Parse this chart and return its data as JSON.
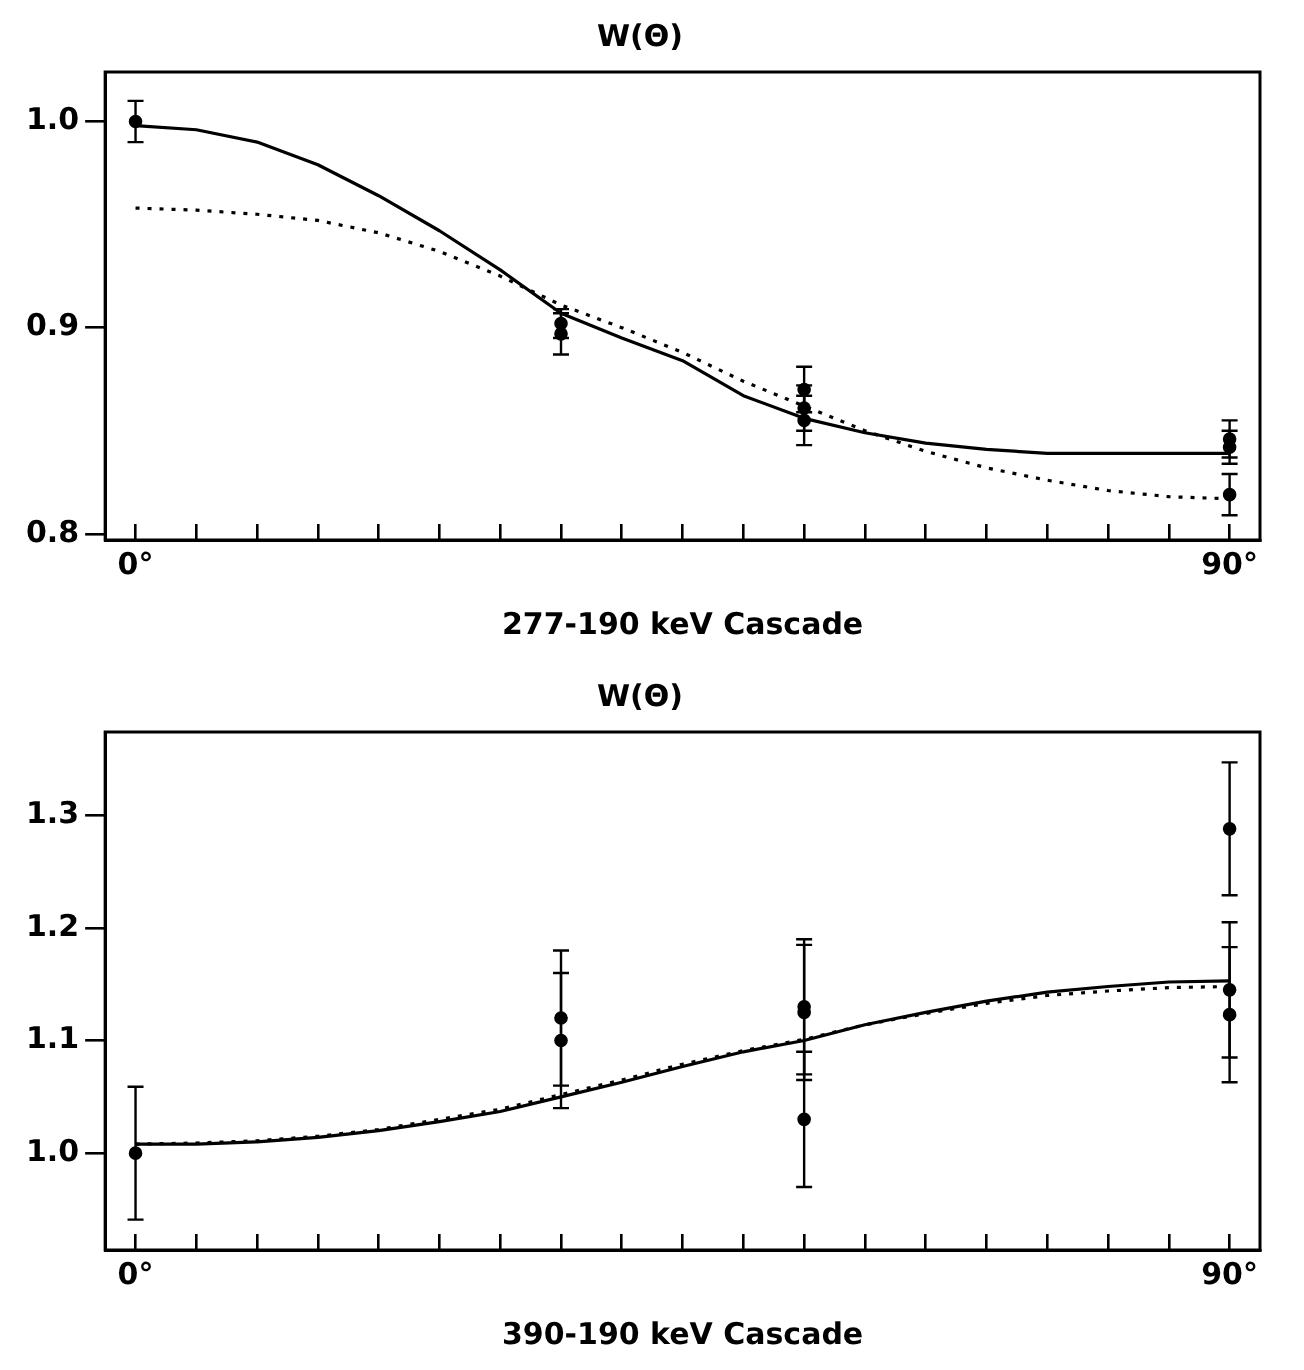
{
  "chart_data": [
    {
      "type": "scatter",
      "title": "W(Θ)",
      "xlabel": "277-190 keV Cascade",
      "xlim": [
        -2.5,
        92.5
      ],
      "ylim": [
        0.797,
        1.024
      ],
      "xticks": [
        {
          "value": 0,
          "label": "0°"
        },
        {
          "value": 5,
          "label": null
        },
        {
          "value": 10,
          "label": null
        },
        {
          "value": 15,
          "label": null
        },
        {
          "value": 20,
          "label": null
        },
        {
          "value": 25,
          "label": null
        },
        {
          "value": 30,
          "label": null
        },
        {
          "value": 35,
          "label": null
        },
        {
          "value": 40,
          "label": null
        },
        {
          "value": 45,
          "label": null
        },
        {
          "value": 50,
          "label": null
        },
        {
          "value": 55,
          "label": null
        },
        {
          "value": 60,
          "label": null
        },
        {
          "value": 65,
          "label": null
        },
        {
          "value": 70,
          "label": null
        },
        {
          "value": 75,
          "label": null
        },
        {
          "value": 80,
          "label": null
        },
        {
          "value": 85,
          "label": null
        },
        {
          "value": 90,
          "label": "90°"
        }
      ],
      "yticks": [
        {
          "value": 0.8,
          "label": "0.8"
        },
        {
          "value": 0.9,
          "label": "0.9"
        },
        {
          "value": 1.0,
          "label": "1.0"
        }
      ],
      "grid": false,
      "legend": false,
      "series": [
        {
          "type": "line",
          "color": "#000000",
          "line_style": "solid",
          "marker": "none",
          "x": [
            0,
            5,
            10,
            15,
            20,
            25,
            30,
            35,
            40,
            45,
            50,
            55,
            60,
            65,
            70,
            75,
            80,
            85,
            90
          ],
          "values": [
            0.998,
            0.996,
            0.99,
            0.979,
            0.964,
            0.947,
            0.928,
            0.907,
            0.895,
            0.884,
            0.867,
            0.856,
            0.849,
            0.844,
            0.841,
            0.839,
            0.839,
            0.839,
            0.839
          ]
        },
        {
          "type": "line",
          "color": "#000000",
          "line_style": "dotted",
          "marker": "none",
          "x": [
            0,
            5,
            10,
            15,
            20,
            25,
            30,
            35,
            40,
            45,
            50,
            55,
            60,
            65,
            70,
            75,
            80,
            85,
            90
          ],
          "values": [
            0.958,
            0.957,
            0.955,
            0.952,
            0.946,
            0.937,
            0.925,
            0.911,
            0.9,
            0.888,
            0.874,
            0.862,
            0.85,
            0.84,
            0.832,
            0.826,
            0.821,
            0.818,
            0.817
          ]
        },
        {
          "type": "scatter",
          "color": "#000000",
          "marker": "circle",
          "x": [
            0,
            35,
            35,
            55,
            55,
            55,
            90,
            90,
            90
          ],
          "values": [
            1.0,
            0.902,
            0.897,
            0.87,
            0.861,
            0.855,
            0.846,
            0.842,
            0.819
          ],
          "errors": [
            0.01,
            0.007,
            0.01,
            0.011,
            0.011,
            0.012,
            0.009,
            0.008,
            0.01
          ]
        }
      ]
    },
    {
      "type": "scatter",
      "title": "W(Θ)",
      "xlabel": "390-190 keV Cascade",
      "xlim": [
        -2.5,
        92.5
      ],
      "ylim": [
        0.914,
        1.374
      ],
      "xticks": [
        {
          "value": 0,
          "label": "0°"
        },
        {
          "value": 5,
          "label": null
        },
        {
          "value": 10,
          "label": null
        },
        {
          "value": 15,
          "label": null
        },
        {
          "value": 20,
          "label": null
        },
        {
          "value": 25,
          "label": null
        },
        {
          "value": 30,
          "label": null
        },
        {
          "value": 35,
          "label": null
        },
        {
          "value": 40,
          "label": null
        },
        {
          "value": 45,
          "label": null
        },
        {
          "value": 50,
          "label": null
        },
        {
          "value": 55,
          "label": null
        },
        {
          "value": 60,
          "label": null
        },
        {
          "value": 65,
          "label": null
        },
        {
          "value": 70,
          "label": null
        },
        {
          "value": 75,
          "label": null
        },
        {
          "value": 80,
          "label": null
        },
        {
          "value": 85,
          "label": null
        },
        {
          "value": 90,
          "label": "90°"
        }
      ],
      "yticks": [
        {
          "value": 1.0,
          "label": "1.0"
        },
        {
          "value": 1.1,
          "label": "1.1"
        },
        {
          "value": 1.2,
          "label": "1.2"
        },
        {
          "value": 1.3,
          "label": "1.3"
        }
      ],
      "grid": false,
      "legend": false,
      "series": [
        {
          "type": "line",
          "color": "#000000",
          "line_style": "solid",
          "marker": "none",
          "x": [
            0,
            5,
            10,
            15,
            20,
            25,
            30,
            35,
            40,
            45,
            50,
            55,
            60,
            65,
            70,
            75,
            80,
            85,
            90
          ],
          "values": [
            1.008,
            1.008,
            1.01,
            1.014,
            1.02,
            1.028,
            1.037,
            1.05,
            1.063,
            1.077,
            1.09,
            1.1,
            1.114,
            1.125,
            1.135,
            1.143,
            1.148,
            1.152,
            1.153
          ]
        },
        {
          "type": "line",
          "color": "#000000",
          "line_style": "dotted",
          "marker": "none",
          "x": [
            0,
            5,
            10,
            15,
            20,
            25,
            30,
            35,
            40,
            45,
            50,
            55,
            60,
            65,
            70,
            75,
            80,
            85,
            90
          ],
          "values": [
            1.008,
            1.009,
            1.011,
            1.015,
            1.021,
            1.03,
            1.039,
            1.052,
            1.065,
            1.079,
            1.091,
            1.101,
            1.114,
            1.124,
            1.133,
            1.14,
            1.144,
            1.147,
            1.148
          ]
        },
        {
          "type": "scatter",
          "color": "#000000",
          "marker": "circle",
          "x": [
            0,
            35,
            35,
            55,
            55,
            55,
            90,
            90,
            90
          ],
          "values": [
            1.0,
            1.12,
            1.1,
            1.13,
            1.125,
            1.03,
            1.288,
            1.145,
            1.123
          ],
          "errors": [
            0.059,
            0.06,
            0.06,
            0.06,
            0.06,
            0.06,
            0.059,
            0.06,
            0.06
          ]
        }
      ]
    }
  ]
}
